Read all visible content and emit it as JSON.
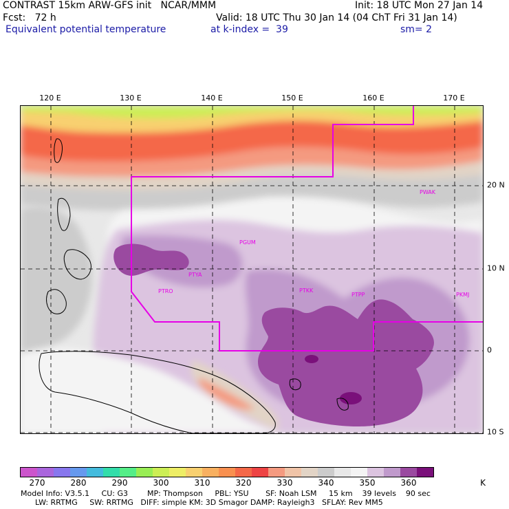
{
  "header": {
    "line1_left": "CONTRAST 15km ARW-GFS init   NCAR/MMM",
    "line1_right": "Init: 18 UTC Mon 27 Jan 14",
    "line2_left": "Fcst:   72 h",
    "line2_right": "Valid: 18 UTC Thu 30 Jan 14 (04 ChT Fri 31 Jan 14)",
    "line3_left": "Equivalent potential temperature",
    "line3_mid": "at k-index =  39",
    "line3_right": "sm= 2"
  },
  "map": {
    "lon_labels": [
      "120 E",
      "130 E",
      "140 E",
      "150 E",
      "160 E",
      "170 E"
    ],
    "lat_labels": [
      "20 N",
      "10 N",
      "0",
      "10 S"
    ],
    "stations": [
      "PGUM",
      "PTYA",
      "PTRO",
      "PTKK",
      "PTPP",
      "PKMJ",
      "PWAK"
    ],
    "domain_border_color": "#e600e6"
  },
  "colorbar": {
    "colors": [
      "#cc55cc",
      "#aa66dd",
      "#8877ee",
      "#6699ee",
      "#44bbdd",
      "#33ddaa",
      "#55ee88",
      "#99ee55",
      "#ccee55",
      "#eeee66",
      "#f8d070",
      "#f8b060",
      "#f89050",
      "#f46848",
      "#ee4444",
      "#f49a80",
      "#f0c4a8",
      "#e2d4c6",
      "#cccccc",
      "#e8e8e8",
      "#f4f4f4",
      "#dcc4e0",
      "#c09acc",
      "#9a4aa0",
      "#7a107a"
    ],
    "tick_labels": [
      "270",
      "280",
      "290",
      "300",
      "310",
      "320",
      "330",
      "340",
      "350",
      "360"
    ],
    "unit": "K"
  },
  "info": {
    "line1": "Model Info: V3.5.1     CU: G3        MP: Thompson     PBL: YSU       SF: Noah LSM     15 km    39 levels    90 sec",
    "line2": "      LW: RRTMG     SW: RRTMG   DIFF: simple KM: 3D Smagor DAMP: Rayleigh3   SFLAY: Rev MM5"
  }
}
